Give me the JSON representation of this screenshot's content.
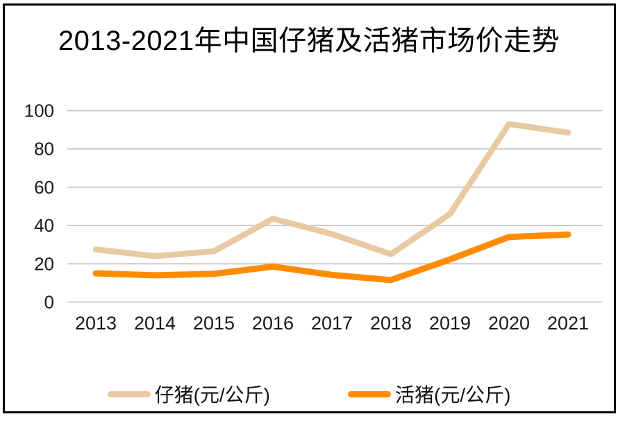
{
  "title": "2013-2021年中国仔猪及活猪市场价走势",
  "chart_data": {
    "type": "line",
    "title": "2013-2021年中国仔猪及活猪市场价走势",
    "categories": [
      "2013",
      "2014",
      "2015",
      "2016",
      "2017",
      "2018",
      "2019",
      "2020",
      "2021"
    ],
    "series": [
      {
        "name": "仔猪(元/公斤)",
        "color": "#E8C9A2",
        "stroke_width": 8.5,
        "values": [
          27.5,
          24,
          26.5,
          43.5,
          35.5,
          25,
          46,
          93,
          88.5
        ]
      },
      {
        "name": "活猪(元/公斤)",
        "color": "#FF8C00",
        "stroke_width": 9,
        "values": [
          15,
          14,
          14.7,
          18.5,
          14.2,
          11.5,
          22.3,
          34,
          35.3
        ]
      }
    ],
    "xlabel": "",
    "ylabel": "",
    "ylim": [
      0,
      100
    ],
    "yticks": [
      0,
      20,
      40,
      60,
      80,
      100
    ],
    "grid": true,
    "gridline_color": "#C6C6C6",
    "axis_text_color": "#1a1a1a",
    "legend_position": "bottom"
  }
}
